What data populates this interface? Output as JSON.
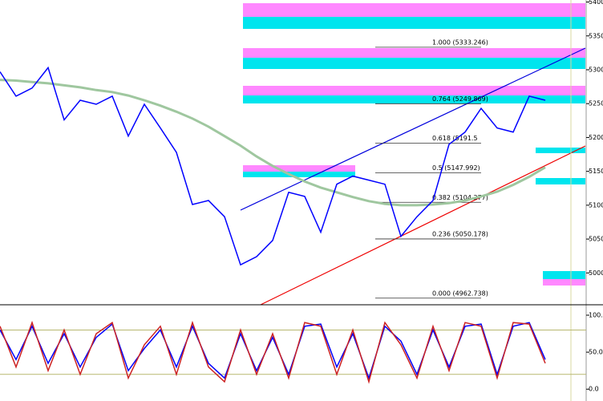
{
  "chart_data": [
    {
      "type": "line",
      "ylim": [
        4953,
        5403
      ],
      "yticks": [
        {
          "value": 5400,
          "label": "5400."
        },
        {
          "value": 5350,
          "label": "5350."
        },
        {
          "value": 5300,
          "label": "5300."
        },
        {
          "value": 5250,
          "label": "5250."
        },
        {
          "value": 5200,
          "label": "5200."
        },
        {
          "value": 5150,
          "label": "5150."
        },
        {
          "value": 5100,
          "label": "5100."
        },
        {
          "value": 5050,
          "label": "5050."
        },
        {
          "value": 5000,
          "label": "5000."
        }
      ],
      "series": [
        {
          "color": "#9fc79f",
          "values": [
            5285,
            5284,
            5282,
            5280,
            5277,
            5274,
            5270,
            5267,
            5262,
            5255,
            5247,
            5238,
            5228,
            5216,
            5202,
            5188,
            5172,
            5158,
            5146,
            5135,
            5126,
            5119,
            5112,
            5106,
            5102,
            5100,
            5100,
            5101,
            5103,
            5107,
            5113,
            5120,
            5130,
            5142,
            5156
          ]
        },
        {
          "color": "#0000ff",
          "values": [
            5297,
            5261,
            5273,
            5303,
            5226,
            5255,
            5249,
            5261,
            5202,
            5249,
            5214,
            5178,
            5101,
            5107,
            5083,
            5012,
            5024,
            5048,
            5119,
            5113,
            5060,
            5131,
            5143,
            5137,
            5131,
            5054,
            5083,
            5107,
            5190,
            5208,
            5243,
            5214,
            5208,
            5261,
            5255
          ]
        }
      ],
      "fib_levels": [
        {
          "value": 5333.246,
          "label": "1.000 (5333.246)"
        },
        {
          "value": 5249.869,
          "label": "0.764 (5249.869)"
        },
        {
          "value": 5191.5,
          "label": "0.618 (5191.5"
        },
        {
          "value": 5147.992,
          "label": "0.5 (5147.992)"
        },
        {
          "value": 5104.277,
          "label": "0.382 (5104.277)"
        },
        {
          "value": 5050.178,
          "label": "0.236 (5050.178)"
        },
        {
          "value": 4962.738,
          "label": "0.000 (4962.738)"
        }
      ]
    },
    {
      "type": "line",
      "ylim": [
        -16,
        113
      ],
      "yticks": [
        {
          "value": 100,
          "label": "100.0"
        },
        {
          "value": 50,
          "label": "50.00"
        },
        {
          "value": 0,
          "label": "0.0"
        }
      ],
      "levels": [
        80,
        20
      ],
      "series": [
        {
          "color": "#0000ff",
          "values": [
            80,
            40,
            85,
            35,
            75,
            30,
            70,
            88,
            25,
            55,
            80,
            30,
            85,
            35,
            15,
            75,
            25,
            70,
            20,
            85,
            88,
            30,
            75,
            15,
            85,
            65,
            20,
            80,
            30,
            85,
            88,
            20,
            85,
            90,
            40
          ]
        },
        {
          "color": "#cc2222",
          "values": [
            85,
            30,
            90,
            25,
            80,
            20,
            75,
            90,
            15,
            60,
            85,
            20,
            90,
            30,
            10,
            80,
            20,
            75,
            15,
            90,
            85,
            20,
            80,
            10,
            90,
            60,
            15,
            85,
            25,
            90,
            85,
            15,
            90,
            88,
            35
          ]
        }
      ]
    }
  ]
}
